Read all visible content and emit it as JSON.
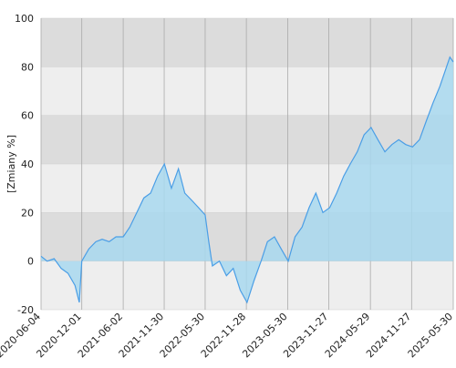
{
  "chart_data": {
    "type": "area",
    "y_label": "[Zmiany %]",
    "x": [
      "2020-06-04",
      "2020-07-01",
      "2020-08-01",
      "2020-09-01",
      "2020-10-01",
      "2020-11-01",
      "2020-11-20",
      "2020-12-01",
      "2021-01-01",
      "2021-02-01",
      "2021-03-01",
      "2021-04-01",
      "2021-05-01",
      "2021-06-02",
      "2021-07-01",
      "2021-08-01",
      "2021-09-01",
      "2021-10-01",
      "2021-11-01",
      "2021-12-01",
      "2022-01-01",
      "2022-02-01",
      "2022-03-01",
      "2022-04-01",
      "2022-05-01",
      "2022-05-30",
      "2022-06-15",
      "2022-07-01",
      "2022-08-01",
      "2022-09-01",
      "2022-10-01",
      "2022-11-01",
      "2022-12-01",
      "2023-01-01",
      "2023-02-01",
      "2023-03-01",
      "2023-04-01",
      "2023-05-01",
      "2023-06-01",
      "2023-07-01",
      "2023-08-01",
      "2023-09-01",
      "2023-10-01",
      "2023-11-01",
      "2023-12-01",
      "2024-01-01",
      "2024-02-01",
      "2024-03-01",
      "2024-04-01",
      "2024-05-01",
      "2024-06-01",
      "2024-07-01",
      "2024-08-01",
      "2024-09-01",
      "2024-10-01",
      "2024-11-01",
      "2024-12-01",
      "2025-01-01",
      "2025-02-01",
      "2025-03-01",
      "2025-04-01",
      "2025-05-15",
      "2025-05-30"
    ],
    "values": [
      2,
      0,
      1,
      -3,
      -5,
      -10,
      -17,
      0,
      5,
      8,
      9,
      8,
      10,
      10,
      14,
      20,
      26,
      28,
      35,
      40,
      30,
      38,
      28,
      25,
      22,
      19,
      8,
      -2,
      0,
      -6,
      -3,
      -12,
      -17,
      -8,
      0,
      8,
      10,
      5,
      0,
      10,
      14,
      22,
      28,
      20,
      22,
      28,
      35,
      40,
      45,
      52,
      55,
      50,
      45,
      48,
      50,
      48,
      47,
      50,
      58,
      65,
      72,
      84,
      82
    ],
    "color": "#4a9ee6",
    "fill": "#a8d8ee",
    "xlim": [
      "2020-06-04",
      "2025-05-30"
    ],
    "xticks": [
      "2020-06-04",
      "2020-12-01",
      "2021-06-02",
      "2021-11-30",
      "2022-05-30",
      "2022-11-28",
      "2023-05-30",
      "2023-11-27",
      "2024-05-29",
      "2024-11-27",
      "2025-05-30"
    ],
    "ylim": [
      -20,
      100
    ],
    "yticks": [
      -20,
      0,
      20,
      40,
      60,
      80,
      100
    ],
    "grid": true
  }
}
